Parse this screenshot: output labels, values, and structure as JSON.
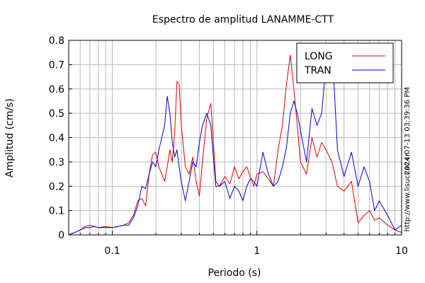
{
  "chart_data": {
    "type": "line",
    "title": "Espectro de amplitud LANAMME-CTT",
    "xlabel": "Periodo (s)",
    "ylabel": "Amplitud (cm/s)",
    "xscale": "log",
    "xlim": [
      0.05,
      10
    ],
    "ylim": [
      0,
      0.8
    ],
    "x_ticks": [
      {
        "value": 0.1,
        "label": "0.1"
      },
      {
        "value": 1,
        "label": "1"
      },
      {
        "value": 10,
        "label": "10"
      }
    ],
    "y_ticks": [
      {
        "value": 0,
        "label": "0"
      },
      {
        "value": 0.1,
        "label": "0.1"
      },
      {
        "value": 0.2,
        "label": "0.2"
      },
      {
        "value": 0.3,
        "label": "0.3"
      },
      {
        "value": 0.4,
        "label": "0.4"
      },
      {
        "value": 0.5,
        "label": "0.5"
      },
      {
        "value": 0.6,
        "label": "0.6"
      },
      {
        "value": 0.7,
        "label": "0.7"
      },
      {
        "value": 0.8,
        "label": "0.8"
      }
    ],
    "grid": true,
    "legend_position": "top-right",
    "side_text_right": "2024-07-13 03:39:36 PM",
    "side_text_bottom": "http://www.lisucr.ac.cr",
    "series": [
      {
        "name": "LONG",
        "color": "#dd0000",
        "x": [
          0.05,
          0.055,
          0.06,
          0.065,
          0.07,
          0.075,
          0.08,
          0.09,
          0.1,
          0.11,
          0.12,
          0.13,
          0.14,
          0.15,
          0.16,
          0.17,
          0.18,
          0.19,
          0.2,
          0.21,
          0.22,
          0.23,
          0.24,
          0.25,
          0.26,
          0.27,
          0.28,
          0.29,
          0.3,
          0.32,
          0.34,
          0.36,
          0.38,
          0.4,
          0.42,
          0.45,
          0.48,
          0.5,
          0.52,
          0.55,
          0.6,
          0.65,
          0.7,
          0.75,
          0.8,
          0.85,
          0.9,
          0.95,
          1.0,
          1.1,
          1.2,
          1.3,
          1.4,
          1.5,
          1.6,
          1.7,
          1.8,
          1.9,
          2.0,
          2.2,
          2.4,
          2.6,
          2.8,
          3.0,
          3.3,
          3.6,
          4.0,
          4.5,
          5.0,
          5.5,
          6.0,
          6.5,
          7.0,
          8.0,
          9.0,
          10.0
        ],
        "y": [
          0.0,
          0.01,
          0.02,
          0.035,
          0.04,
          0.035,
          0.03,
          0.035,
          0.03,
          0.035,
          0.04,
          0.05,
          0.08,
          0.14,
          0.15,
          0.12,
          0.25,
          0.33,
          0.34,
          0.28,
          0.25,
          0.22,
          0.28,
          0.35,
          0.3,
          0.42,
          0.63,
          0.62,
          0.45,
          0.28,
          0.25,
          0.32,
          0.22,
          0.16,
          0.3,
          0.48,
          0.54,
          0.38,
          0.22,
          0.2,
          0.24,
          0.21,
          0.28,
          0.23,
          0.26,
          0.28,
          0.24,
          0.2,
          0.25,
          0.26,
          0.23,
          0.2,
          0.35,
          0.45,
          0.62,
          0.74,
          0.6,
          0.45,
          0.3,
          0.25,
          0.4,
          0.32,
          0.38,
          0.35,
          0.3,
          0.2,
          0.18,
          0.22,
          0.05,
          0.08,
          0.1,
          0.06,
          0.07,
          0.04,
          0.02,
          0.01
        ]
      },
      {
        "name": "TRAN",
        "color": "#0000cc",
        "x": [
          0.05,
          0.055,
          0.06,
          0.065,
          0.07,
          0.075,
          0.08,
          0.09,
          0.1,
          0.11,
          0.12,
          0.13,
          0.14,
          0.15,
          0.16,
          0.17,
          0.18,
          0.19,
          0.2,
          0.21,
          0.22,
          0.23,
          0.24,
          0.25,
          0.26,
          0.27,
          0.28,
          0.29,
          0.3,
          0.32,
          0.34,
          0.36,
          0.38,
          0.4,
          0.42,
          0.45,
          0.48,
          0.5,
          0.52,
          0.55,
          0.6,
          0.65,
          0.7,
          0.75,
          0.8,
          0.85,
          0.9,
          0.95,
          1.0,
          1.1,
          1.2,
          1.3,
          1.4,
          1.5,
          1.6,
          1.7,
          1.8,
          1.9,
          2.0,
          2.2,
          2.4,
          2.6,
          2.8,
          3.0,
          3.3,
          3.6,
          4.0,
          4.5,
          5.0,
          5.5,
          6.0,
          6.5,
          7.0,
          8.0,
          9.0,
          10.0
        ],
        "y": [
          0.0,
          0.01,
          0.02,
          0.03,
          0.03,
          0.035,
          0.03,
          0.03,
          0.03,
          0.035,
          0.04,
          0.04,
          0.07,
          0.12,
          0.2,
          0.19,
          0.25,
          0.3,
          0.28,
          0.35,
          0.4,
          0.45,
          0.57,
          0.5,
          0.38,
          0.32,
          0.35,
          0.28,
          0.22,
          0.14,
          0.22,
          0.3,
          0.28,
          0.38,
          0.45,
          0.5,
          0.45,
          0.32,
          0.2,
          0.2,
          0.22,
          0.15,
          0.2,
          0.18,
          0.14,
          0.2,
          0.23,
          0.22,
          0.2,
          0.34,
          0.25,
          0.2,
          0.22,
          0.28,
          0.36,
          0.5,
          0.55,
          0.5,
          0.43,
          0.3,
          0.52,
          0.45,
          0.5,
          0.7,
          0.78,
          0.35,
          0.24,
          0.34,
          0.2,
          0.28,
          0.22,
          0.1,
          0.14,
          0.08,
          0.02,
          0.04
        ]
      }
    ]
  }
}
